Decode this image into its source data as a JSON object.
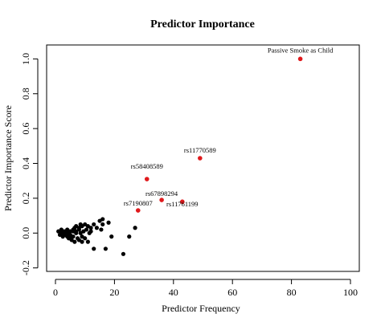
{
  "chart_data": {
    "type": "scatter",
    "title": "Predictor Importance",
    "xlabel": "Predictor Frequency",
    "ylabel": "Predictor Importance Score",
    "xlim": [
      -3,
      103
    ],
    "ylim": [
      -0.22,
      1.08
    ],
    "xticks": [
      0,
      20,
      40,
      60,
      80,
      100
    ],
    "yticks": [
      -0.2,
      0.0,
      0.2,
      0.4,
      0.6,
      0.8,
      1.0
    ],
    "xtick_labels": [
      "0",
      "20",
      "40",
      "60",
      "80",
      "100"
    ],
    "ytick_labels": [
      "-0.2",
      "0.0",
      "0.2",
      "0.4",
      "0.6",
      "0.8",
      "1.0"
    ],
    "grid": false,
    "colors": {
      "highlight": "#e0191c",
      "points": "#000000"
    },
    "series": [
      {
        "role": "other-predictors",
        "color": "#000000",
        "points": [
          [
            1,
            0.01
          ],
          [
            1.5,
            -0.01
          ],
          [
            2,
            0.0
          ],
          [
            2,
            0.02
          ],
          [
            2.5,
            -0.02
          ],
          [
            3,
            0.01
          ],
          [
            3,
            -0.01
          ],
          [
            3.5,
            0.0
          ],
          [
            4,
            -0.02
          ],
          [
            4,
            0.02
          ],
          [
            4.5,
            -0.03
          ],
          [
            5,
            0.01
          ],
          [
            5,
            -0.01
          ],
          [
            5.5,
            -0.04
          ],
          [
            6,
            0.02
          ],
          [
            6,
            -0.02
          ],
          [
            6.5,
            0.03
          ],
          [
            6.5,
            -0.05
          ],
          [
            7,
            0.04
          ],
          [
            7,
            0.0
          ],
          [
            7.5,
            -0.03
          ],
          [
            8,
            0.03
          ],
          [
            8,
            -0.04
          ],
          [
            8.5,
            0.0
          ],
          [
            8.5,
            0.05
          ],
          [
            9,
            -0.02
          ],
          [
            9,
            0.04
          ],
          [
            9.5,
            0.01
          ],
          [
            10,
            -0.03
          ],
          [
            10,
            0.05
          ],
          [
            10.5,
            0.02
          ],
          [
            11,
            -0.05
          ],
          [
            11,
            0.04
          ],
          [
            11.5,
            0.0
          ],
          [
            12,
            0.03
          ],
          [
            13,
            -0.09
          ],
          [
            13,
            0.05
          ],
          [
            14,
            0.03
          ],
          [
            15,
            0.07
          ],
          [
            15.5,
            0.02
          ],
          [
            16,
            0.08
          ],
          [
            16,
            0.05
          ],
          [
            17,
            -0.09
          ],
          [
            18,
            0.06
          ],
          [
            19,
            -0.02
          ],
          [
            23,
            -0.12
          ],
          [
            25,
            -0.02
          ],
          [
            27,
            0.03
          ],
          [
            3,
            0.0
          ],
          [
            5,
            -0.03
          ],
          [
            7,
            0.01
          ],
          [
            9,
            -0.05
          ],
          [
            12,
            0.01
          ],
          [
            6,
            0.01
          ],
          [
            4,
            0.0
          ],
          [
            8,
            0.02
          ]
        ]
      },
      {
        "role": "top-predictors",
        "color": "#e0191c",
        "points": [
          {
            "x": 83,
            "y": 1.0,
            "label": "Passive Smoke as Child"
          },
          {
            "x": 49,
            "y": 0.43,
            "label": "rs11770589"
          },
          {
            "x": 31,
            "y": 0.31,
            "label": "rs58408589"
          },
          {
            "x": 36,
            "y": 0.19,
            "label": "rs67898294"
          },
          {
            "x": 43,
            "y": 0.18,
            "label": "rs11761199"
          },
          {
            "x": 28,
            "y": 0.13,
            "label": "rs7190807"
          }
        ]
      }
    ]
  }
}
